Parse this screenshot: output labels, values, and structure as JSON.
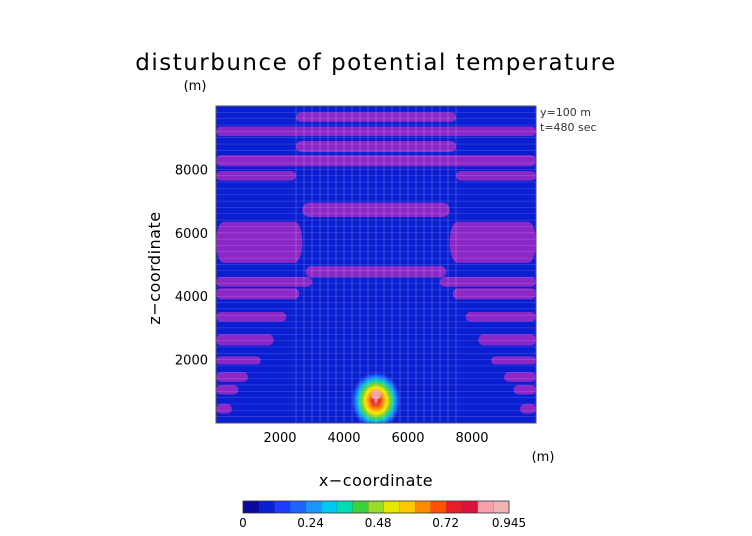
{
  "chart_data": {
    "type": "heatmap",
    "title": "disturbunce of potential temperature",
    "unit_label": "(m)",
    "xlabel": "x−coordinate",
    "ylabel": "z−coordinate",
    "x_unit": "(m)",
    "xlim": [
      0,
      10000
    ],
    "ylim": [
      0,
      10000
    ],
    "x_ticks": [
      "2000",
      "4000",
      "6000",
      "8000"
    ],
    "x_tick_values": [
      2000,
      4000,
      6000,
      8000
    ],
    "y_ticks": [
      "2000",
      "4000",
      "6000",
      "8000"
    ],
    "y_tick_values": [
      2000,
      4000,
      6000,
      8000
    ],
    "annotations": [
      "y=100 m",
      "t=480 sec"
    ],
    "colorbar": {
      "ticks": [
        "0",
        "0.24",
        "0.48",
        "0.72",
        "0.945"
      ],
      "tick_values": [
        0,
        0.24,
        0.48,
        0.72,
        0.945
      ],
      "min": 0,
      "max": 0.945
    },
    "background_value": 0.05,
    "bands": [
      {
        "z0": 9500,
        "z1": 9800,
        "x0": 2500,
        "x1": 7500,
        "value": 0.11
      },
      {
        "z0": 9050,
        "z1": 9350,
        "x0": 0,
        "x1": 10000,
        "value": 0.11
      },
      {
        "z0": 8550,
        "z1": 8900,
        "x0": 2500,
        "x1": 7500,
        "value": 0.11
      },
      {
        "z0": 8100,
        "z1": 8450,
        "x0": 0,
        "x1": 10000,
        "value": 0.11
      },
      {
        "z0": 7650,
        "z1": 7950,
        "x0": 0,
        "x1": 2500,
        "value": 0.11
      },
      {
        "z0": 7650,
        "z1": 7950,
        "x0": 7500,
        "x1": 10000,
        "value": 0.11
      },
      {
        "z0": 6500,
        "z1": 6950,
        "x0": 2700,
        "x1": 7300,
        "value": 0.11
      },
      {
        "z0": 5050,
        "z1": 6350,
        "x0": 0,
        "x1": 2700,
        "value": 0.11
      },
      {
        "z0": 5050,
        "z1": 6350,
        "x0": 7300,
        "x1": 10000,
        "value": 0.11
      },
      {
        "z0": 4600,
        "z1": 4950,
        "x0": 2800,
        "x1": 7200,
        "value": 0.11
      },
      {
        "z0": 4300,
        "z1": 4600,
        "x0": 0,
        "x1": 3000,
        "value": 0.11
      },
      {
        "z0": 4300,
        "z1": 4600,
        "x0": 7000,
        "x1": 10000,
        "value": 0.11
      },
      {
        "z0": 3900,
        "z1": 4250,
        "x0": 0,
        "x1": 2600,
        "value": 0.11
      },
      {
        "z0": 3900,
        "z1": 4250,
        "x0": 7400,
        "x1": 10000,
        "value": 0.11
      },
      {
        "z0": 3200,
        "z1": 3500,
        "x0": 0,
        "x1": 2200,
        "value": 0.11
      },
      {
        "z0": 3200,
        "z1": 3500,
        "x0": 7800,
        "x1": 10000,
        "value": 0.11
      },
      {
        "z0": 2450,
        "z1": 2800,
        "x0": 0,
        "x1": 1800,
        "value": 0.11
      },
      {
        "z0": 2450,
        "z1": 2800,
        "x0": 8200,
        "x1": 10000,
        "value": 0.11
      },
      {
        "z0": 1850,
        "z1": 2100,
        "x0": 0,
        "x1": 1400,
        "value": 0.11
      },
      {
        "z0": 1850,
        "z1": 2100,
        "x0": 8600,
        "x1": 10000,
        "value": 0.11
      },
      {
        "z0": 1300,
        "z1": 1600,
        "x0": 0,
        "x1": 1000,
        "value": 0.11
      },
      {
        "z0": 1300,
        "z1": 1600,
        "x0": 9000,
        "x1": 10000,
        "value": 0.11
      },
      {
        "z0": 900,
        "z1": 1200,
        "x0": 0,
        "x1": 700,
        "value": 0.11
      },
      {
        "z0": 900,
        "z1": 1200,
        "x0": 9300,
        "x1": 10000,
        "value": 0.11
      },
      {
        "z0": 300,
        "z1": 600,
        "x0": 0,
        "x1": 500,
        "value": 0.11
      },
      {
        "z0": 300,
        "z1": 600,
        "x0": 9500,
        "x1": 10000,
        "value": 0.11
      }
    ],
    "thermal": {
      "x": 5000,
      "z": 800,
      "peak": 0.945
    }
  }
}
